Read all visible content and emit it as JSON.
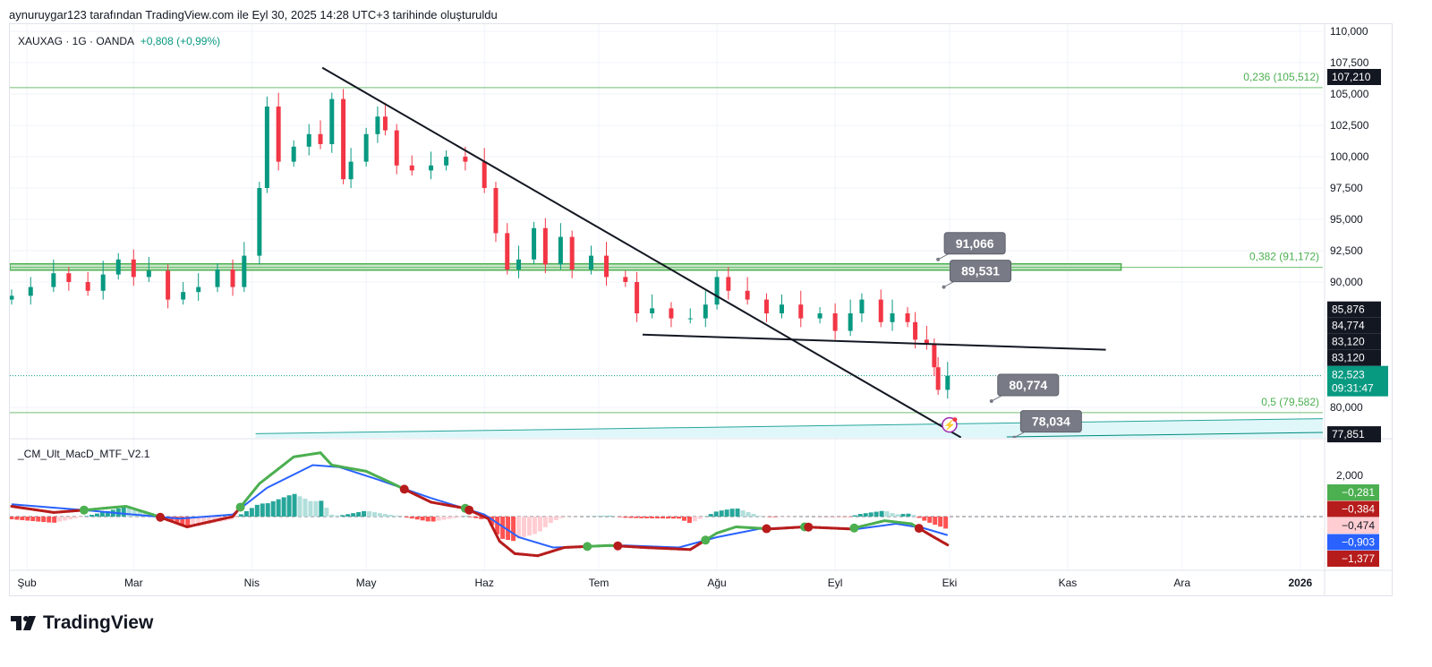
{
  "caption": "aynuruygar123 tarafından TradingView.com ile Eyl 30, 2025 14:28 UTC+3 tarihinde oluşturuldu",
  "legend": {
    "symbol": "XAUXAG · 1G · OANDA",
    "change": "+0,808 (+0,99%)"
  },
  "indicator": {
    "name": "_CM_Ult_MacD_MTF_V2.1"
  },
  "logo": {
    "text": "TradingView"
  },
  "colors": {
    "up": "#089981",
    "down": "#f23645",
    "fib": "#4caf50",
    "macd_up": "#4caf50",
    "macd_down": "#b71c1c",
    "signal": "#2962ff"
  },
  "chart_data": {
    "type": "candlestick",
    "title": "XAUXAG · 1G · OANDA",
    "x_unit": "days since Feb 1 2025",
    "xlim": [
      -4,
      338
    ],
    "ylim": [
      77.2,
      111.4
    ],
    "price_ticks": [
      "110,000",
      "107,500",
      "105,000",
      "102,500",
      "100,000",
      "97,500",
      "95,000",
      "92,500",
      "90,000",
      "80,000"
    ],
    "price_tick_values": [
      110,
      107.5,
      105,
      102.5,
      100,
      97.5,
      95,
      92.5,
      90,
      80
    ],
    "time_ticks": [
      {
        "d": 0,
        "label": "Şub"
      },
      {
        "d": 28,
        "label": "Mar"
      },
      {
        "d": 59,
        "label": "Nis"
      },
      {
        "d": 89,
        "label": "May"
      },
      {
        "d": 120,
        "label": "Haz"
      },
      {
        "d": 150,
        "label": "Tem"
      },
      {
        "d": 181,
        "label": "Ağu"
      },
      {
        "d": 212,
        "label": "Eyl"
      },
      {
        "d": 242,
        "label": "Eki"
      },
      {
        "d": 273,
        "label": "Kas"
      },
      {
        "d": 303,
        "label": "Ara"
      },
      {
        "d": 334,
        "label": "2026"
      }
    ],
    "candles": [
      [
        -4,
        88.9
      ],
      [
        1,
        89.6
      ],
      [
        7,
        90.7
      ],
      [
        11,
        90.0
      ],
      [
        16,
        89.3
      ],
      [
        20,
        90.6
      ],
      [
        24,
        91.8
      ],
      [
        28,
        90.4
      ],
      [
        32,
        90.9
      ],
      [
        37,
        88.6
      ],
      [
        41,
        89.2
      ],
      [
        45,
        89.6
      ],
      [
        50,
        91.0
      ],
      [
        54,
        89.6
      ],
      [
        57,
        92.1
      ],
      [
        61,
        97.5
      ],
      [
        63,
        104.0
      ],
      [
        66,
        99.6
      ],
      [
        70,
        100.8
      ],
      [
        74,
        101.8
      ],
      [
        77,
        101.0
      ],
      [
        80,
        104.6
      ],
      [
        83,
        98.2
      ],
      [
        85,
        99.6
      ],
      [
        89,
        101.8
      ],
      [
        92,
        103.2
      ],
      [
        94,
        102.1
      ],
      [
        97,
        99.3
      ],
      [
        101,
        98.9
      ],
      [
        106,
        99.3
      ],
      [
        110,
        100.0
      ],
      [
        115,
        99.6
      ],
      [
        120,
        97.5
      ],
      [
        123,
        93.9
      ],
      [
        126,
        91.0
      ],
      [
        129,
        91.8
      ],
      [
        133,
        94.3
      ],
      [
        136,
        91.4
      ],
      [
        140,
        93.6
      ],
      [
        143,
        91.0
      ],
      [
        148,
        92.1
      ],
      [
        152,
        90.4
      ],
      [
        157,
        90.0
      ],
      [
        160,
        87.5
      ],
      [
        164,
        87.9
      ],
      [
        169,
        87.1
      ],
      [
        174,
        87.1
      ],
      [
        178,
        88.2
      ],
      [
        181,
        90.4
      ],
      [
        184,
        89.3
      ],
      [
        189,
        88.6
      ],
      [
        194,
        87.5
      ],
      [
        198,
        88.2
      ],
      [
        203,
        87.1
      ],
      [
        208,
        87.5
      ],
      [
        212,
        86.1
      ],
      [
        216,
        87.5
      ],
      [
        219,
        88.6
      ],
      [
        224,
        86.8
      ],
      [
        227,
        87.5
      ],
      [
        231,
        86.8
      ],
      [
        233,
        85.4
      ],
      [
        236,
        85.0
      ],
      [
        238,
        83.2
      ],
      [
        239,
        81.4
      ],
      [
        241.5,
        82.523
      ]
    ],
    "last_price": "82,523",
    "countdown": "09:31:47",
    "price_tags": [
      {
        "value": 107.21,
        "label": "107,210",
        "color": "#131722"
      },
      {
        "value": 85.876,
        "label": "85,876",
        "color": "#131722"
      },
      {
        "value": 84.774,
        "label": "84,774",
        "color": "#131722"
      },
      {
        "value": 83.55,
        "label": "83,120",
        "color": "#131722"
      },
      {
        "value": 82.95,
        "label": "83,120",
        "color": "#131722"
      },
      {
        "value": 77.851,
        "label": "77,851",
        "color": "#131722"
      }
    ],
    "fib_levels": [
      {
        "value": 105.512,
        "label": "0,236 (105,512)"
      },
      {
        "value": 91.172,
        "label": "0,382 (91,172)"
      },
      {
        "value": 79.582,
        "label": "0,5 (79,582)"
      }
    ],
    "support_zone": [
      90.95,
      91.45
    ],
    "trendlines": [
      {
        "from": [
          77.5,
          107.1
        ],
        "to": [
          245,
          77.6
        ]
      },
      {
        "from": [
          161.5,
          85.8
        ],
        "to": [
          283,
          84.6
        ]
      }
    ],
    "channel": {
      "from": [
        60,
        77.9
      ],
      "to": [
        340,
        79.1
      ]
    },
    "callouts": [
      {
        "label": "91,066",
        "at": [
          239,
          91.8
        ]
      },
      {
        "label": "89,531",
        "at": [
          240.5,
          89.6
        ]
      },
      {
        "label": "80,774",
        "at": [
          253,
          80.5
        ]
      },
      {
        "label": "78,034",
        "at": [
          259,
          77.6
        ]
      }
    ],
    "macd": {
      "ylim": [
        -2.6,
        3.9
      ],
      "tick": {
        "value": 2,
        "label": "2,000"
      },
      "macd_line": [
        [
          -4,
          0.5
        ],
        [
          7,
          0.2
        ],
        [
          14,
          0.3
        ],
        [
          26,
          0.5
        ],
        [
          33,
          0.1
        ],
        [
          42,
          -0.5
        ],
        [
          54,
          0.0
        ],
        [
          61,
          1.6
        ],
        [
          70,
          2.9
        ],
        [
          77,
          3.1
        ],
        [
          80,
          2.5
        ],
        [
          89,
          2.2
        ],
        [
          96,
          1.6
        ],
        [
          106,
          0.7
        ],
        [
          115,
          0.4
        ],
        [
          121,
          -0.1
        ],
        [
          124,
          -1.2
        ],
        [
          128,
          -1.8
        ],
        [
          134,
          -1.9
        ],
        [
          141,
          -1.5
        ],
        [
          153,
          -1.4
        ],
        [
          162,
          -1.5
        ],
        [
          174,
          -1.6
        ],
        [
          181,
          -0.8
        ],
        [
          186,
          -0.5
        ],
        [
          195,
          -0.6
        ],
        [
          204,
          -0.5
        ],
        [
          216,
          -0.6
        ],
        [
          225,
          -0.2
        ],
        [
          232,
          -0.35
        ],
        [
          237,
          -0.9
        ],
        [
          241.5,
          -1.377
        ]
      ],
      "signal_line": [
        [
          -4,
          0.6
        ],
        [
          16,
          0.3
        ],
        [
          40,
          -0.1
        ],
        [
          54,
          0.1
        ],
        [
          63,
          1.4
        ],
        [
          75,
          2.5
        ],
        [
          82,
          2.4
        ],
        [
          92,
          1.8
        ],
        [
          106,
          0.9
        ],
        [
          120,
          0.1
        ],
        [
          129,
          -1.0
        ],
        [
          138,
          -1.5
        ],
        [
          157,
          -1.4
        ],
        [
          171,
          -1.5
        ],
        [
          181,
          -1.0
        ],
        [
          192,
          -0.6
        ],
        [
          204,
          -0.5
        ],
        [
          218,
          -0.6
        ],
        [
          228,
          -0.35
        ],
        [
          235,
          -0.55
        ],
        [
          241.5,
          -0.903
        ]
      ],
      "value_tags": [
        {
          "label": "−0,281",
          "color": "#4caf50",
          "text": "#fff"
        },
        {
          "label": "−0,384",
          "color": "#b71c1c",
          "text": "#fff"
        },
        {
          "label": "−0,474",
          "color": "#ffcdd2",
          "text": "#131722"
        },
        {
          "label": "−0,903",
          "color": "#2962ff",
          "text": "#fff"
        },
        {
          "label": "−1,377",
          "color": "#b71c1c",
          "text": "#fff"
        }
      ]
    }
  }
}
